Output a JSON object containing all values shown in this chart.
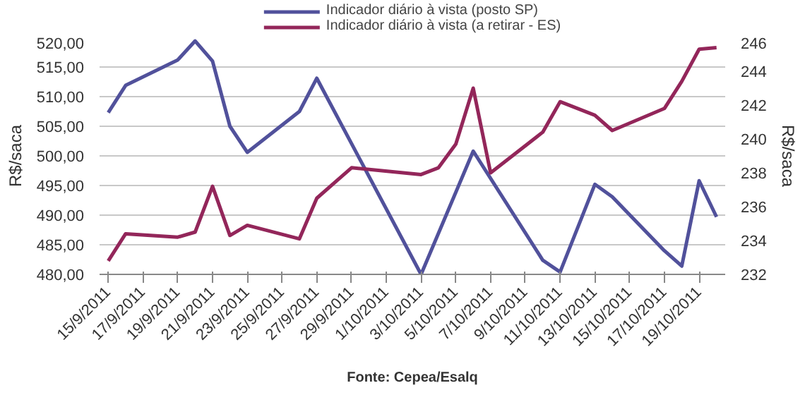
{
  "chart_data": {
    "type": "line",
    "x": [
      "2011-09-15",
      "2011-09-16",
      "2011-09-19",
      "2011-09-20",
      "2011-09-21",
      "2011-09-22",
      "2011-09-23",
      "2011-09-26",
      "2011-09-27",
      "2011-09-29",
      "2011-10-03",
      "2011-10-04",
      "2011-10-05",
      "2011-10-06",
      "2011-10-07",
      "2011-10-10",
      "2011-10-11",
      "2011-10-13",
      "2011-10-14",
      "2011-10-17",
      "2011-10-18",
      "2011-10-19",
      "2011-10-20"
    ],
    "series": [
      {
        "name": "Indicador diário à vista (posto SP)",
        "color": "#51519b",
        "values": [
          507.3,
          511.9,
          516.2,
          519.4,
          516.0,
          505.0,
          500.6,
          507.5,
          513.1,
          null,
          480.0,
          null,
          null,
          500.8,
          null,
          482.4,
          480.4,
          495.2,
          493.1,
          484.0,
          481.4,
          495.8,
          489.7
        ]
      },
      {
        "name": "Indicador diário à vista (a retirar - ES)",
        "color": "#93265a",
        "axis": "y2",
        "values": [
          232.8,
          234.4,
          234.2,
          234.5,
          237.2,
          234.3,
          234.9,
          234.1,
          236.5,
          238.3,
          237.9,
          238.3,
          239.7,
          243.0,
          238.0,
          240.4,
          242.2,
          241.4,
          240.5,
          241.8,
          243.4,
          245.3,
          245.4
        ]
      }
    ],
    "ylabel": "R$/saca",
    "y2label": "R$/saca",
    "xlim": [
      "2011-09-14T12:00",
      "2011-10-20T12:00"
    ],
    "xticks": [
      {
        "value": "2011-09-15",
        "label": "15/9/2011"
      },
      {
        "value": "2011-09-17",
        "label": "17/9/2011"
      },
      {
        "value": "2011-09-19",
        "label": "19/9/2011"
      },
      {
        "value": "2011-09-21",
        "label": "21/9/2011"
      },
      {
        "value": "2011-09-23",
        "label": "23/9/2011"
      },
      {
        "value": "2011-09-25",
        "label": "25/9/2011"
      },
      {
        "value": "2011-09-27",
        "label": "27/9/2011"
      },
      {
        "value": "2011-09-29",
        "label": "29/9/2011"
      },
      {
        "value": "2011-10-01",
        "label": "1/10/2011"
      },
      {
        "value": "2011-10-03",
        "label": "3/10/2011"
      },
      {
        "value": "2011-10-05",
        "label": "5/10/2011"
      },
      {
        "value": "2011-10-07",
        "label": "7/10/2011"
      },
      {
        "value": "2011-10-09",
        "label": "9/10/2011"
      },
      {
        "value": "2011-10-11",
        "label": "11/10/2011"
      },
      {
        "value": "2011-10-13",
        "label": "13/10/2011"
      },
      {
        "value": "2011-10-15",
        "label": "15/10/2011"
      },
      {
        "value": "2011-10-17",
        "label": "17/10/2011"
      },
      {
        "value": "2011-10-19",
        "label": "19/10/2011"
      }
    ],
    "ylim": [
      480,
      520
    ],
    "yticks": [
      {
        "value": 480,
        "label": "480,00"
      },
      {
        "value": 485,
        "label": "485,00"
      },
      {
        "value": 490,
        "label": "490,00"
      },
      {
        "value": 495,
        "label": "495,00"
      },
      {
        "value": 500,
        "label": "500,00"
      },
      {
        "value": 505,
        "label": "505,00"
      },
      {
        "value": 510,
        "label": "510,00"
      },
      {
        "value": 515,
        "label": "515,00"
      },
      {
        "value": 520,
        "label": "520,00"
      }
    ],
    "y2lim": [
      232,
      246
    ],
    "y2ticks": [
      232,
      234,
      236,
      238,
      240,
      242,
      244,
      246
    ],
    "grid": "y",
    "legend": "top",
    "marker": "none",
    "line_style": "solid",
    "annotations": [
      "Fonte: Cepea/Esalq"
    ]
  }
}
